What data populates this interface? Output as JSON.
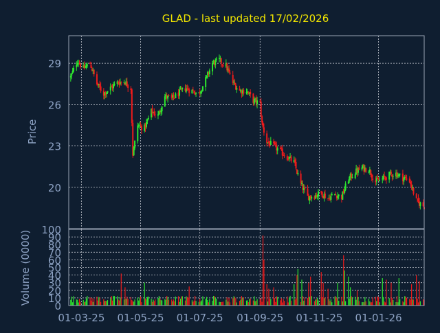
{
  "chart_data": {
    "type": "candlestick",
    "title": "GLAD - last updated 17/02/2026",
    "colors": {
      "background": "#0f1e30",
      "plot_border": "#9aa4b4",
      "grid": "#c8ccd4",
      "title": "#f2e600",
      "axis_text": "#8ea3c4",
      "up": "#2ee82e",
      "down": "#ee1b1b"
    },
    "price_panel": {
      "ylabel": "Price",
      "ylim": [
        17.0,
        31.0
      ],
      "yticks": [
        20,
        23,
        26,
        29
      ],
      "grid": true
    },
    "volume_panel": {
      "ylabel": "Volume (0000)",
      "ylim": [
        0,
        100
      ],
      "yticks": [
        0,
        10,
        20,
        30,
        40,
        50,
        60,
        70,
        80,
        90,
        100
      ],
      "grid": true
    },
    "x_axis": {
      "start_date": "2025-02-16",
      "end_date": "2026-02-17",
      "tick_labels": [
        "01-03-25",
        "01-05-25",
        "01-07-25",
        "01-09-25",
        "01-11-25",
        "01-01-26"
      ],
      "tick_dates": [
        "2025-03-01",
        "2025-05-01",
        "2025-07-01",
        "2025-09-01",
        "2025-11-01",
        "2026-01-01"
      ]
    },
    "price_path": [
      [
        "2025-02-18",
        28.0
      ],
      [
        "2025-02-25",
        29.2
      ],
      [
        "2025-03-03",
        28.6
      ],
      [
        "2025-03-10",
        29.0
      ],
      [
        "2025-03-17",
        27.5
      ],
      [
        "2025-03-24",
        26.8
      ],
      [
        "2025-03-31",
        27.2
      ],
      [
        "2025-04-07",
        27.6
      ],
      [
        "2025-04-14",
        27.7
      ],
      [
        "2025-04-21",
        27.2
      ],
      [
        "2025-04-23",
        22.4
      ],
      [
        "2025-04-28",
        24.5
      ],
      [
        "2025-05-05",
        24.3
      ],
      [
        "2025-05-12",
        25.5
      ],
      [
        "2025-05-19",
        25.2
      ],
      [
        "2025-05-26",
        26.6
      ],
      [
        "2025-06-02",
        26.4
      ],
      [
        "2025-06-09",
        26.8
      ],
      [
        "2025-06-16",
        27.2
      ],
      [
        "2025-06-23",
        27.0
      ],
      [
        "2025-06-30",
        26.8
      ],
      [
        "2025-07-07",
        27.8
      ],
      [
        "2025-07-14",
        29.0
      ],
      [
        "2025-07-21",
        29.2
      ],
      [
        "2025-07-28",
        28.8
      ],
      [
        "2025-08-04",
        27.6
      ],
      [
        "2025-08-11",
        27.0
      ],
      [
        "2025-08-18",
        27.0
      ],
      [
        "2025-08-25",
        26.3
      ],
      [
        "2025-09-01",
        26.1
      ],
      [
        "2025-09-03",
        24.6
      ],
      [
        "2025-09-08",
        23.3
      ],
      [
        "2025-09-15",
        23.0
      ],
      [
        "2025-09-22",
        22.6
      ],
      [
        "2025-09-29",
        22.2
      ],
      [
        "2025-10-06",
        21.8
      ],
      [
        "2025-10-13",
        20.2
      ],
      [
        "2025-10-20",
        19.3
      ],
      [
        "2025-10-27",
        19.4
      ],
      [
        "2025-11-03",
        19.6
      ],
      [
        "2025-11-10",
        19.2
      ],
      [
        "2025-11-17",
        19.5
      ],
      [
        "2025-11-24",
        19.3
      ],
      [
        "2025-12-01",
        20.6
      ],
      [
        "2025-12-08",
        21.1
      ],
      [
        "2025-12-15",
        21.4
      ],
      [
        "2025-12-22",
        21.3
      ],
      [
        "2025-12-29",
        20.4
      ],
      [
        "2026-01-05",
        20.6
      ],
      [
        "2026-01-12",
        20.9
      ],
      [
        "2026-01-19",
        21.0
      ],
      [
        "2026-01-26",
        20.7
      ],
      [
        "2026-02-02",
        20.5
      ],
      [
        "2026-02-09",
        19.0
      ],
      [
        "2026-02-17",
        18.6
      ]
    ],
    "volume_spikes": [
      [
        "2025-04-11",
        42
      ],
      [
        "2025-04-15",
        24
      ],
      [
        "2025-05-05",
        30
      ],
      [
        "2025-06-20",
        25
      ],
      [
        "2025-09-04",
        92
      ],
      [
        "2025-09-05",
        60
      ],
      [
        "2025-09-08",
        28
      ],
      [
        "2025-09-10",
        22
      ],
      [
        "2025-09-15",
        24
      ],
      [
        "2025-10-06",
        28
      ],
      [
        "2025-10-09",
        40
      ],
      [
        "2025-10-10",
        48
      ],
      [
        "2025-10-14",
        34
      ],
      [
        "2025-10-21",
        30
      ],
      [
        "2025-10-23",
        38
      ],
      [
        "2025-11-03",
        44
      ],
      [
        "2025-11-05",
        30
      ],
      [
        "2025-11-10",
        22
      ],
      [
        "2025-11-20",
        30
      ],
      [
        "2025-11-26",
        66
      ],
      [
        "2025-11-27",
        46
      ],
      [
        "2025-12-01",
        38
      ],
      [
        "2025-12-03",
        24
      ],
      [
        "2025-12-10",
        20
      ],
      [
        "2026-01-05",
        36
      ],
      [
        "2026-01-09",
        34
      ],
      [
        "2026-01-14",
        30
      ],
      [
        "2026-01-22",
        36
      ],
      [
        "2026-02-04",
        28
      ],
      [
        "2026-02-09",
        40
      ],
      [
        "2026-02-12",
        32
      ]
    ],
    "volume_baseline": 10
  }
}
